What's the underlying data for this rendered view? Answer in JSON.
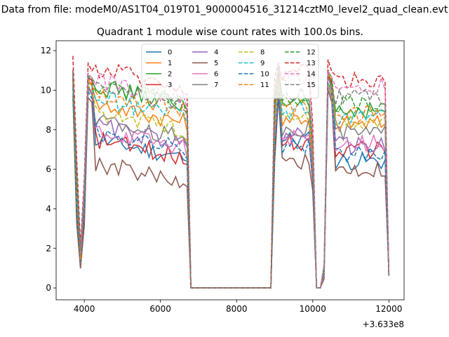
{
  "suptitle": "Data from file: modeM0/AS1T04_019T01_9000004516_31214cztM0_level2_quad_clean.evt",
  "chart_data": {
    "type": "line",
    "title": "Quadrant 1 module wise count rates with 100.0s bins.",
    "xlabel": "",
    "ylabel": "",
    "x_offset_label": "+3.633e8",
    "xlim": [
      3260,
      12400
    ],
    "ylim": [
      -0.6,
      12.5
    ],
    "x_ticks": [
      4000,
      6000,
      8000,
      10000,
      12000
    ],
    "y_ticks": [
      0,
      2,
      4,
      6,
      8,
      10,
      12
    ],
    "legend": {
      "position": "top-center",
      "columns": 4
    },
    "x": [
      3700,
      3800,
      3900,
      4000,
      4100,
      4200,
      4300,
      4400,
      4500,
      4600,
      4700,
      4800,
      4900,
      5000,
      5100,
      5200,
      5300,
      5400,
      5500,
      5600,
      5700,
      5800,
      5900,
      6000,
      6100,
      6200,
      6300,
      6400,
      6500,
      6600,
      6700,
      6800,
      6900,
      7000,
      7100,
      7200,
      7300,
      7400,
      7500,
      7600,
      7700,
      7800,
      7900,
      8000,
      8100,
      8200,
      8300,
      8400,
      8500,
      8600,
      8700,
      8800,
      8900,
      9000,
      9100,
      9200,
      9300,
      9400,
      9500,
      9600,
      9700,
      9800,
      9900,
      10000,
      10100,
      10200,
      10300,
      10400,
      10500,
      10600,
      10700,
      10800,
      10900,
      11000,
      11100,
      11200,
      11300,
      11400,
      11500,
      11600,
      11700,
      11800,
      11900,
      12000
    ],
    "gaps": [
      {
        "start": 6800,
        "end": 8900
      },
      {
        "start": 10100,
        "end": 10200
      }
    ],
    "series": [
      {
        "name": "0",
        "color": "#1f77b4",
        "style": "solid",
        "peak": 11.0,
        "low": 1.2,
        "level_a": 6.6,
        "level_b": 7.5,
        "level_c": 6.4
      },
      {
        "name": "1",
        "color": "#ff7f0e",
        "style": "solid",
        "peak": 11.2,
        "low": 1.1,
        "level_a": 8.4,
        "level_b": 8.6,
        "level_c": 8.3
      },
      {
        "name": "2",
        "color": "#2ca02c",
        "style": "solid",
        "peak": 11.3,
        "low": 1.3,
        "level_a": 9.3,
        "level_b": 9.2,
        "level_c": 9.0
      },
      {
        "name": "3",
        "color": "#d62728",
        "style": "solid",
        "peak": 11.2,
        "low": 1.2,
        "level_a": 6.6,
        "level_b": 7.3,
        "level_c": 7.0
      },
      {
        "name": "4",
        "color": "#9467bd",
        "style": "solid",
        "peak": 10.8,
        "low": 1.2,
        "level_a": 7.3,
        "level_b": 7.8,
        "level_c": 7.2
      },
      {
        "name": "5",
        "color": "#8c564b",
        "style": "solid",
        "peak": 10.2,
        "low": 1.0,
        "level_a": 5.4,
        "level_b": 6.4,
        "level_c": 6.0
      },
      {
        "name": "6",
        "color": "#e377c2",
        "style": "solid",
        "peak": 10.6,
        "low": 1.2,
        "level_a": 7.1,
        "level_b": 7.6,
        "level_c": 7.3
      },
      {
        "name": "7",
        "color": "#7f7f7f",
        "style": "solid",
        "peak": 10.7,
        "low": 1.3,
        "level_a": 7.6,
        "level_b": 8.1,
        "level_c": 7.8
      },
      {
        "name": "8",
        "color": "#bcbd22",
        "style": "dashed",
        "peak": 10.8,
        "low": 1.4,
        "level_a": 8.0,
        "level_b": 8.6,
        "level_c": 8.3
      },
      {
        "name": "9",
        "color": "#17becf",
        "style": "dashed",
        "peak": 10.9,
        "low": 1.5,
        "level_a": 8.7,
        "level_b": 8.9,
        "level_c": 8.6
      },
      {
        "name": "10",
        "color": "#1f77b4",
        "style": "dashed",
        "peak": 10.5,
        "low": 1.3,
        "level_a": 7.0,
        "level_b": 7.2,
        "level_c": 6.8
      },
      {
        "name": "11",
        "color": "#ff7f0e",
        "style": "dashed",
        "peak": 11.0,
        "low": 1.6,
        "level_a": 9.0,
        "level_b": 9.1,
        "level_c": 8.8
      },
      {
        "name": "12",
        "color": "#2ca02c",
        "style": "dashed",
        "peak": 11.3,
        "low": 1.7,
        "level_a": 9.4,
        "level_b": 9.6,
        "level_c": 9.3
      },
      {
        "name": "13",
        "color": "#d62728",
        "style": "dashed",
        "peak": 11.9,
        "low": 1.9,
        "level_a": 10.2,
        "level_b": 10.9,
        "level_c": 10.5
      },
      {
        "name": "14",
        "color": "#e377c2",
        "style": "dashed",
        "peak": 11.4,
        "low": 1.8,
        "level_a": 9.6,
        "level_b": 10.4,
        "level_c": 10.2
      },
      {
        "name": "15",
        "color": "#7f7f7f",
        "style": "dashed",
        "peak": 11.2,
        "low": 1.7,
        "level_a": 9.2,
        "level_b": 9.8,
        "level_c": 9.6
      }
    ]
  }
}
